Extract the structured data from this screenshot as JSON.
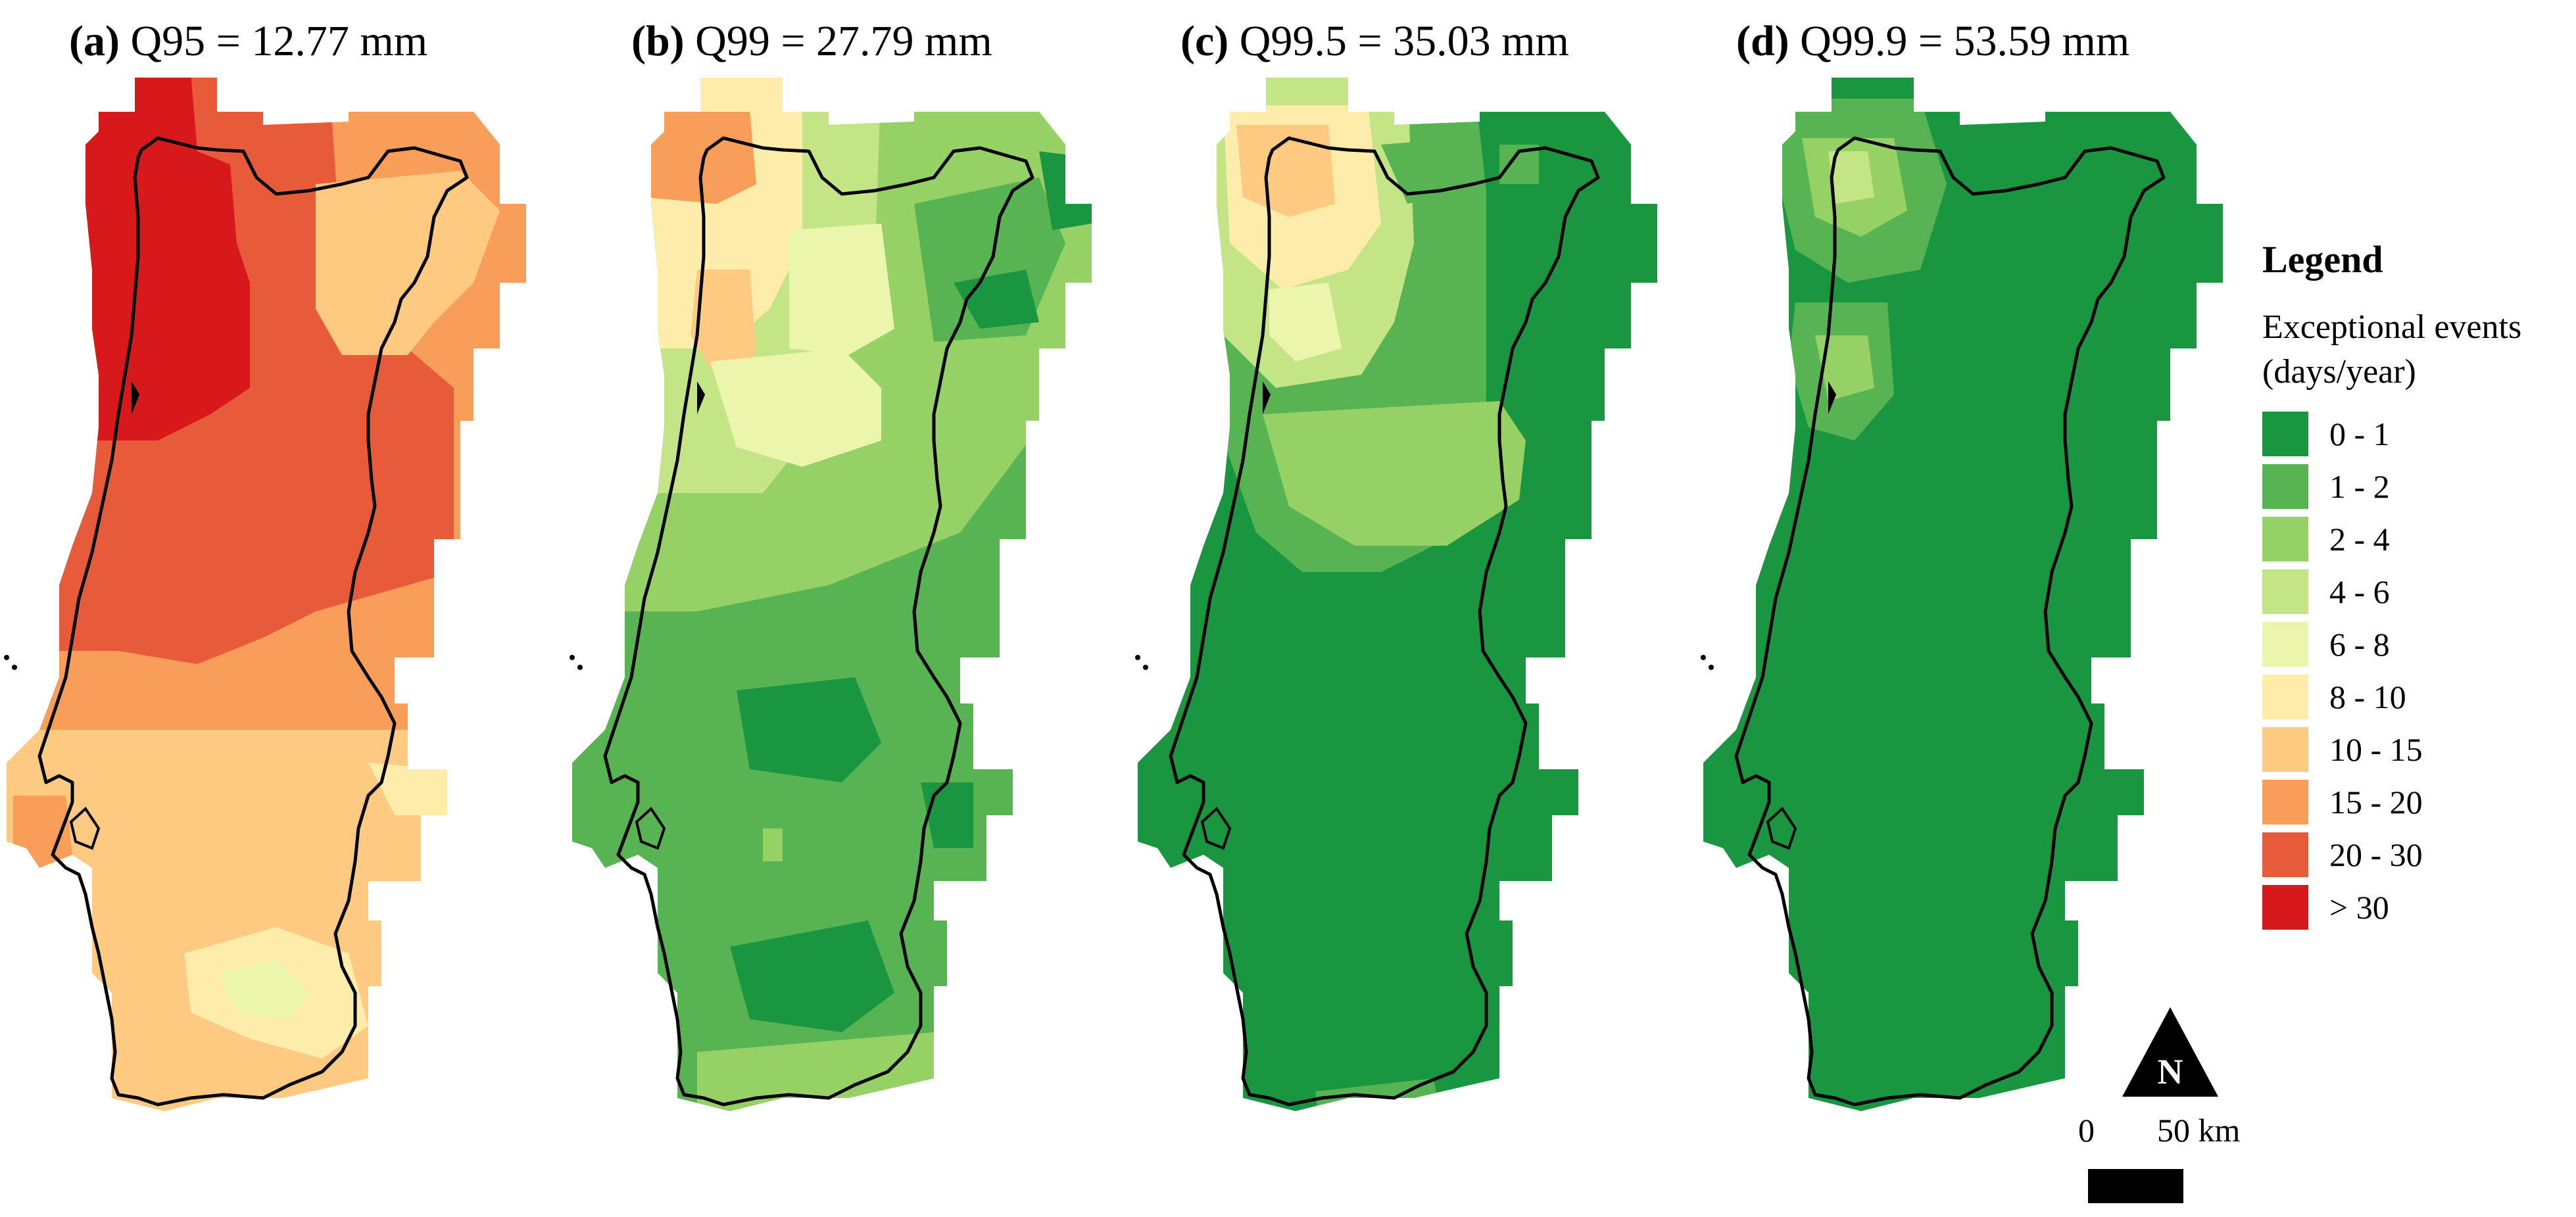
{
  "panels": [
    {
      "tag": "(a)",
      "title": "Q95 = 12.77 mm"
    },
    {
      "tag": "(b)",
      "title": "Q99 = 27.79 mm"
    },
    {
      "tag": "(c)",
      "title": "Q99.5 = 35.03 mm"
    },
    {
      "tag": "(d)",
      "title": "Q99.9 = 53.59 mm"
    }
  ],
  "legend": {
    "title": "Legend",
    "subtitle_line1": "Exceptional events",
    "subtitle_line2": "(days/year)",
    "classes": [
      {
        "label": "0 - 1",
        "color": "#1a9641"
      },
      {
        "label": "1 - 2",
        "color": "#58b453"
      },
      {
        "label": "2 - 4",
        "color": "#96d165"
      },
      {
        "label": "4 - 6",
        "color": "#c3e586"
      },
      {
        "label": "6 - 8",
        "color": "#ebf6ac"
      },
      {
        "label": "8 - 10",
        "color": "#feecab"
      },
      {
        "label": "10 - 15",
        "color": "#fec981"
      },
      {
        "label": "15 - 20",
        "color": "#f99e59"
      },
      {
        "label": "20 - 30",
        "color": "#e85b3a"
      },
      {
        "label": "> 30",
        "color": "#d7191c"
      }
    ]
  },
  "north_arrow": {
    "label": "N"
  },
  "scale_bar": {
    "start_label": "0",
    "end_label": "50 km"
  }
}
